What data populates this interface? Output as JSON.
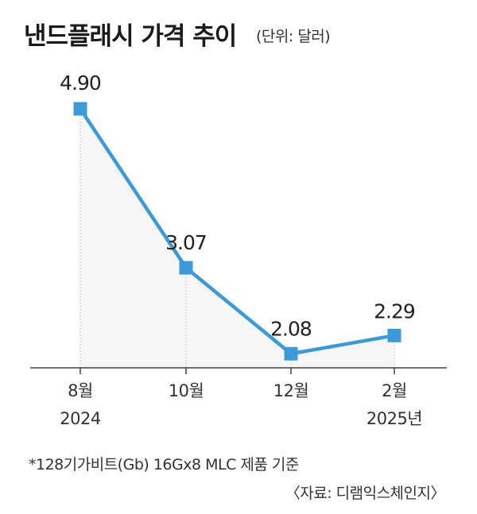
{
  "header": {
    "title": "낸드플래시 가격 추이",
    "unit": "(단위: 달러)"
  },
  "chart_data": {
    "type": "line",
    "title": "낸드플래시 가격 추이",
    "unit": "(단위: 달러)",
    "categories": [
      "8월 2024",
      "10월",
      "12월",
      "2월 2025년"
    ],
    "x_tick_labels": [
      {
        "month": "8월",
        "year": "2024"
      },
      {
        "month": "10월",
        "year": ""
      },
      {
        "month": "12월",
        "year": ""
      },
      {
        "month": "2월",
        "year": "2025년"
      }
    ],
    "values": [
      4.9,
      3.07,
      2.08,
      2.29
    ],
    "value_labels": [
      "4.90",
      "3.07",
      "2.08",
      "2.29"
    ],
    "ylim": [
      2.0,
      4.9
    ],
    "grid": false,
    "colors": {
      "line": "#3d9ad8",
      "marker": "#3d9ad8",
      "area": "#f6f6f6"
    }
  },
  "footnote": "*128기가비트(Gb) 16Gx8 MLC 제품 기준",
  "source": "〈자료: 디램익스체인지〉"
}
